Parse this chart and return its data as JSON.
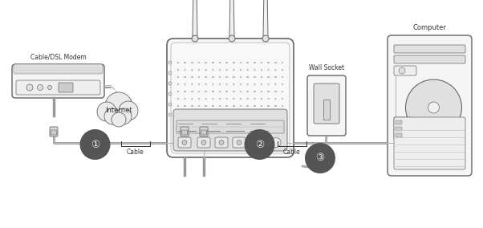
{
  "bg_color": "#ffffff",
  "line_color": "#666666",
  "fill_light": "#f5f5f5",
  "fill_mid": "#e0e0e0",
  "fill_dark": "#cccccc",
  "text_color": "#333333",
  "cable_color": "#999999",
  "labels": {
    "modem": "Cable/DSL Modem",
    "internet": "Internet",
    "wall_socket": "Wall Socket",
    "computer": "Computer",
    "cable1": "Cable",
    "cable2": "Cable",
    "num1": "①",
    "num2": "②",
    "num3": "③"
  },
  "figsize": [
    6.02,
    2.84
  ],
  "dpi": 100
}
